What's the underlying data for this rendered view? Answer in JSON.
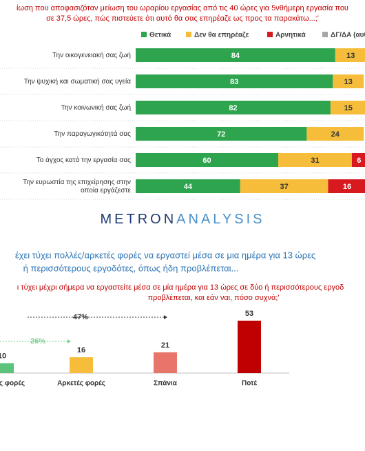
{
  "chart_data": [
    {
      "type": "stacked-bar-horizontal",
      "title": [
        "ίωση που αποφασιζόταν μείωση του ωραρίου εργασίας από τις 40 ώρες για 5νθήμερη εργασία που",
        "σε 37,5 ώρες, πώς πιστεύετε ότι αυτό θα σας επηρέαζε ως προς τα παρακάτω...;'"
      ],
      "categories": [
        "Την οικογενειακή σας ζωή",
        "Την ψυχική και σωματική σας υγεία",
        "Την κοινωνική σας ζωή",
        "Την παραγωγικότητά σας",
        "Το άγχος κατά την εργασία σας",
        "Την ευρωστία της επιχείρησης στην|οποία εργάζεστε"
      ],
      "xlim": [
        0,
        100
      ],
      "series": [
        {
          "name": "Θετικά",
          "color": "#2ea44f",
          "values": [
            84,
            83,
            82,
            72,
            60,
            44
          ]
        },
        {
          "name": "Δεν θα επηρέαζε",
          "color": "#f5bd3a",
          "values": [
            13,
            13,
            15,
            24,
            31,
            37
          ]
        },
        {
          "name": "Αρνητικά",
          "color": "#d71920",
          "values": [
            null,
            null,
            null,
            null,
            6,
            16
          ]
        },
        {
          "name": "ΔΓ/ΔΑ (αυθ",
          "color": "#a6a6a6",
          "values": [
            null,
            null,
            null,
            null,
            null,
            null
          ]
        }
      ],
      "logo": [
        "METRON",
        "ANALYSIS"
      ]
    },
    {
      "type": "bar",
      "subtitle": [
        "έχει τύχει πολλές/αρκετές φορές να εργαστεί μέσα σε μια ημέρα για 13 ώρες",
        "ή περισσότερους εργοδότες, όπως ήδη προβλέπεται..."
      ],
      "title": [
        "ι τύχει μέχρι σήμερα να εργαστείτε μέσα σε μία ημέρα για 13 ώρες σε δύο ή περισσότερους εργοδ",
        "προβλέπεται, και εάν ναι, πόσο συχνά;'"
      ],
      "categories": [
        "Πολλές φορές",
        "Αρκετές φορές",
        "Σπάνια",
        "Ποτέ"
      ],
      "values": [
        10,
        16,
        21,
        53
      ],
      "colors": [
        "#5cc47a",
        "#f5bd3a",
        "#e8756a",
        "#c00000"
      ],
      "ylim": [
        0,
        53
      ],
      "annotations": [
        "47%",
        "26%"
      ]
    }
  ]
}
